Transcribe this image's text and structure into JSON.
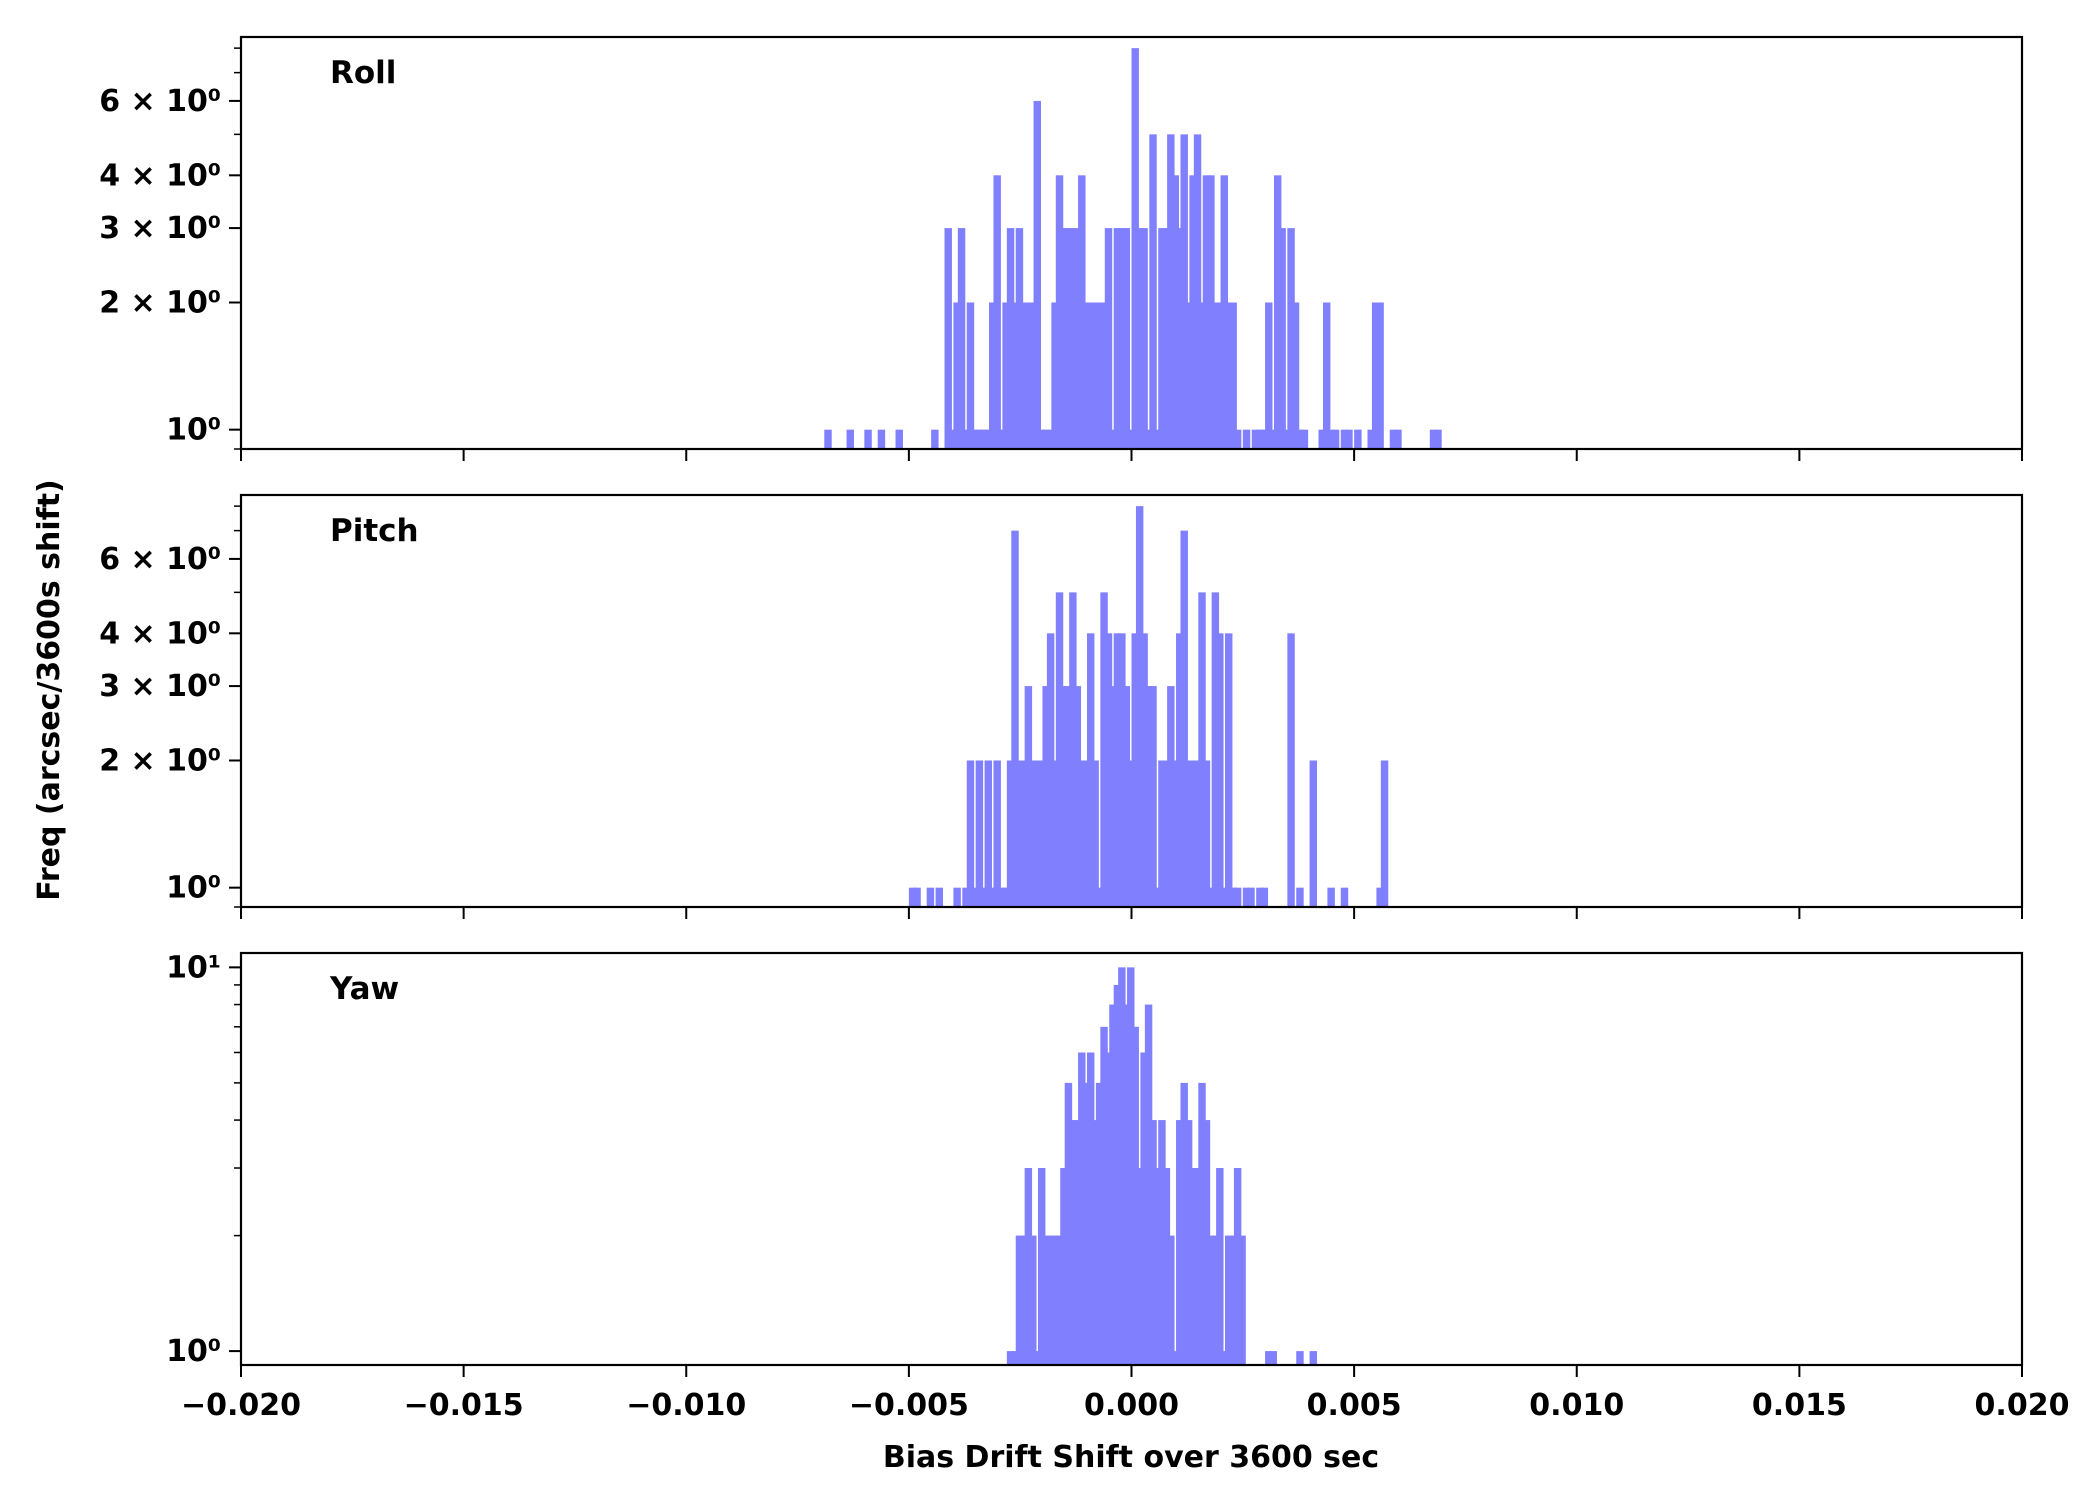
{
  "chart_data": [
    {
      "type": "bar",
      "title": "Roll",
      "yscale": "log",
      "ylim": [
        0.9,
        8.5
      ],
      "ytick_labels": [
        {
          "value": 1,
          "label": "10⁰"
        },
        {
          "value": 2,
          "label": "2 × 10⁰"
        },
        {
          "value": 3,
          "label": "3 × 10⁰"
        },
        {
          "value": 4,
          "label": "4 × 10⁰"
        },
        {
          "value": 6,
          "label": "6 × 10⁰"
        }
      ],
      "bin_width": 0.000167,
      "x": [
        -0.0069,
        -0.0064,
        -0.006,
        -0.0057,
        -0.0053,
        -0.0045,
        -0.0042,
        -0.0041,
        -0.004,
        -0.0039,
        -0.0038,
        -0.0037,
        -0.0036,
        -0.0035,
        -0.0034,
        -0.0033,
        -0.0032,
        -0.0031,
        -0.003,
        -0.0029,
        -0.0028,
        -0.0027,
        -0.0026,
        -0.0025,
        -0.0024,
        -0.0023,
        -0.0022,
        -0.0021,
        -0.002,
        -0.0019,
        -0.0018,
        -0.0017,
        -0.0016,
        -0.0015,
        -0.0014,
        -0.0013,
        -0.0012,
        -0.0011,
        -0.001,
        -0.0009,
        -0.0008,
        -0.0007,
        -0.0006,
        -0.0005,
        -0.0004,
        -0.0003,
        -0.0002,
        -0.0001,
        0.0,
        0.0001,
        0.0002,
        0.0003,
        0.0004,
        0.0005,
        0.0006,
        0.0007,
        0.0008,
        0.0009,
        0.001,
        0.0011,
        0.0012,
        0.0013,
        0.0014,
        0.0015,
        0.0016,
        0.0017,
        0.0018,
        0.0019,
        0.002,
        0.0021,
        0.0022,
        0.0023,
        0.0025,
        0.0027,
        0.0028,
        0.0029,
        0.003,
        0.0031,
        0.0032,
        0.0033,
        0.0034,
        0.0035,
        0.0036,
        0.0037,
        0.0038,
        0.0042,
        0.0043,
        0.0044,
        0.0045,
        0.0047,
        0.0048,
        0.005,
        0.0053,
        0.0054,
        0.0055,
        0.0058,
        0.0059,
        0.0067,
        0.0068
      ],
      "values": [
        1,
        1,
        1,
        1,
        1,
        1,
        3,
        1,
        2,
        3,
        1,
        2,
        1,
        1,
        1,
        1,
        2,
        4,
        1,
        2,
        3,
        2,
        3,
        2,
        2,
        2,
        6,
        1,
        1,
        1,
        2,
        4,
        3,
        3,
        3,
        3,
        4,
        2,
        2,
        2,
        2,
        2,
        3,
        1,
        3,
        3,
        3,
        1,
        8,
        3,
        3,
        1,
        5,
        1,
        3,
        3,
        5,
        4,
        3,
        5,
        2,
        4,
        5,
        2,
        4,
        4,
        2,
        2,
        4,
        2,
        2,
        1,
        1,
        1,
        1,
        1,
        2,
        1,
        4,
        3,
        1,
        3,
        2,
        1,
        1,
        1,
        2,
        1,
        1,
        1,
        1,
        1,
        1,
        2,
        2,
        1,
        1,
        1,
        1
      ]
    },
    {
      "type": "bar",
      "title": "Pitch",
      "yscale": "log",
      "ylim": [
        0.9,
        8.5
      ],
      "ytick_labels": [
        {
          "value": 1,
          "label": "10⁰"
        },
        {
          "value": 2,
          "label": "2 × 10⁰"
        },
        {
          "value": 3,
          "label": "3 × 10⁰"
        },
        {
          "value": 4,
          "label": "4 × 10⁰"
        },
        {
          "value": 6,
          "label": "6 × 10⁰"
        }
      ],
      "bin_width": 0.000167,
      "x": [
        -0.005,
        -0.0049,
        -0.0046,
        -0.0044,
        -0.004,
        -0.0038,
        -0.0037,
        -0.0036,
        -0.0035,
        -0.0034,
        -0.0033,
        -0.0032,
        -0.0031,
        -0.003,
        -0.0029,
        -0.0028,
        -0.0027,
        -0.0026,
        -0.0025,
        -0.0024,
        -0.0023,
        -0.0022,
        -0.0021,
        -0.002,
        -0.0019,
        -0.0018,
        -0.0017,
        -0.0016,
        -0.0015,
        -0.0014,
        -0.0013,
        -0.0012,
        -0.0011,
        -0.001,
        -0.0009,
        -0.0008,
        -0.0007,
        -0.0006,
        -0.0005,
        -0.0004,
        -0.0003,
        -0.0002,
        -0.0001,
        0.0,
        0.0001,
        0.0002,
        0.0003,
        0.0004,
        0.0005,
        0.0006,
        0.0007,
        0.0008,
        0.0009,
        0.001,
        0.0011,
        0.0012,
        0.0013,
        0.0014,
        0.0015,
        0.0016,
        0.0017,
        0.0018,
        0.0019,
        0.002,
        0.0021,
        0.0022,
        0.0023,
        0.0025,
        0.0026,
        0.0028,
        0.0029,
        0.0035,
        0.0037,
        0.004,
        0.0044,
        0.0047,
        0.0055,
        0.0056
      ],
      "values": [
        1,
        1,
        1,
        1,
        1,
        1,
        2,
        1,
        2,
        1,
        2,
        1,
        2,
        1,
        1,
        2,
        7,
        2,
        2,
        3,
        2,
        2,
        2,
        3,
        4,
        2,
        5,
        3,
        3,
        5,
        3,
        2,
        2,
        4,
        2,
        1,
        5,
        4,
        3,
        4,
        4,
        3,
        2,
        4,
        8,
        4,
        3,
        3,
        1,
        2,
        2,
        3,
        2,
        4,
        7,
        2,
        2,
        2,
        5,
        2,
        1,
        5,
        4,
        1,
        4,
        1,
        1,
        1,
        1,
        1,
        1,
        4,
        1,
        2,
        1,
        1,
        1,
        2
      ]
    },
    {
      "type": "bar",
      "title": "Yaw",
      "yscale": "log",
      "ylim": [
        0.92,
        10.9
      ],
      "ytick_labels": [
        {
          "value": 1,
          "label": "10⁰"
        },
        {
          "value": 10,
          "label": "10¹"
        }
      ],
      "bin_width": 0.000167,
      "x": [
        -0.0028,
        -0.0027,
        -0.0026,
        -0.0025,
        -0.0024,
        -0.0023,
        -0.0022,
        -0.0021,
        -0.002,
        -0.0019,
        -0.0018,
        -0.0017,
        -0.0016,
        -0.0015,
        -0.0014,
        -0.0013,
        -0.0012,
        -0.0011,
        -0.001,
        -0.0009,
        -0.0008,
        -0.0007,
        -0.0006,
        -0.0005,
        -0.0004,
        -0.0003,
        -0.0002,
        -0.0001,
        0.0,
        0.0001,
        0.0002,
        0.0003,
        0.0004,
        0.0005,
        0.0006,
        0.0007,
        0.0008,
        0.0009,
        0.001,
        0.0011,
        0.0012,
        0.0013,
        0.0014,
        0.0015,
        0.0016,
        0.0017,
        0.0018,
        0.0019,
        0.002,
        0.0021,
        0.0022,
        0.0023,
        0.0024,
        0.003,
        0.0031,
        0.0037,
        0.004
      ],
      "values": [
        1,
        1,
        2,
        2,
        3,
        2,
        1,
        3,
        2,
        2,
        2,
        2,
        3,
        5,
        4,
        4,
        6,
        5,
        6,
        4,
        5,
        7,
        6,
        8,
        9,
        10,
        8,
        10,
        7,
        3,
        6,
        8,
        4,
        3,
        4,
        3,
        2,
        1,
        4,
        5,
        4,
        3,
        3,
        5,
        4,
        2,
        2,
        3,
        1,
        2,
        2,
        3,
        2,
        1,
        1,
        1,
        1
      ]
    }
  ],
  "x_axis": {
    "label": "Bias Drift Shift over 3600 sec",
    "xlim": [
      -0.02,
      0.02
    ],
    "ticks": [
      {
        "value": -0.02,
        "label": "−0.020"
      },
      {
        "value": -0.015,
        "label": "−0.015"
      },
      {
        "value": -0.01,
        "label": "−0.010"
      },
      {
        "value": -0.005,
        "label": "−0.005"
      },
      {
        "value": 0.0,
        "label": "0.000"
      },
      {
        "value": 0.005,
        "label": "0.005"
      },
      {
        "value": 0.01,
        "label": "0.010"
      },
      {
        "value": 0.015,
        "label": "0.015"
      },
      {
        "value": 0.02,
        "label": "0.020"
      }
    ]
  },
  "y_axis": {
    "label": "Freq (arcsec/3600s shift)"
  },
  "colors": {
    "bar": "#8080ff",
    "axis": "#000000"
  }
}
